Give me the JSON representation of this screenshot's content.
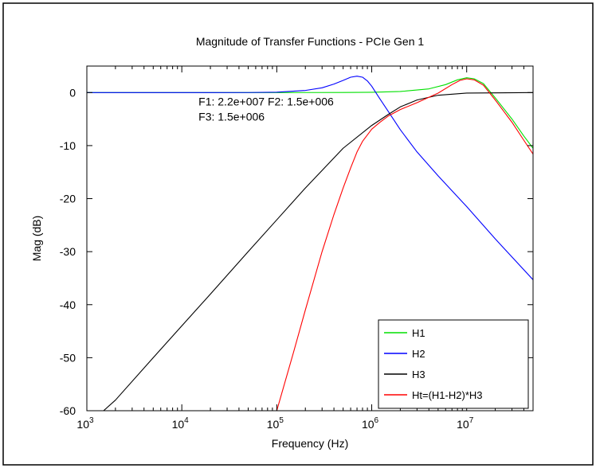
{
  "chart_data": {
    "type": "line",
    "title": "Magnitude of Transfer Functions - PCIe Gen 1",
    "xlabel": "Frequency (Hz)",
    "ylabel": "Mag (dB)",
    "xscale": "log",
    "xlim": [
      1000,
      50000000
    ],
    "ylim": [
      -60,
      5
    ],
    "grid": false,
    "legend_position": "bottom-right",
    "x_ticks": [
      {
        "value": 1000,
        "base": "10",
        "exp": "3"
      },
      {
        "value": 10000,
        "base": "10",
        "exp": "4"
      },
      {
        "value": 100000,
        "base": "10",
        "exp": "5"
      },
      {
        "value": 1000000,
        "base": "10",
        "exp": "6"
      },
      {
        "value": 10000000,
        "base": "10",
        "exp": "7"
      }
    ],
    "y_ticks": [
      {
        "value": 0,
        "label": "0"
      },
      {
        "value": -10,
        "label": "-10"
      },
      {
        "value": -20,
        "label": "-20"
      },
      {
        "value": -30,
        "label": "-30"
      },
      {
        "value": -40,
        "label": "-40"
      },
      {
        "value": -50,
        "label": "-50"
      },
      {
        "value": -60,
        "label": "-60"
      }
    ],
    "annotations": [
      {
        "text": "F1: 2.2e+007 F2: 1.5e+006",
        "x": 15000,
        "y": -2.4
      },
      {
        "text": "F3: 1.5e+006",
        "x": 15000,
        "y": -5.3
      }
    ],
    "series": [
      {
        "name": "H1",
        "color": "#00e000",
        "points": [
          [
            1000,
            0
          ],
          [
            100000,
            0
          ],
          [
            500000,
            0.02
          ],
          [
            1000000,
            0.05
          ],
          [
            2000000,
            0.2
          ],
          [
            4000000,
            0.7
          ],
          [
            6000000,
            1.5
          ],
          [
            8000000,
            2.4
          ],
          [
            10000000,
            2.8
          ],
          [
            12000000,
            2.6
          ],
          [
            15000000,
            1.7
          ],
          [
            20000000,
            -1.0
          ],
          [
            30000000,
            -5.0
          ],
          [
            40000000,
            -8.2
          ],
          [
            50000000,
            -10.5
          ]
        ]
      },
      {
        "name": "H2",
        "color": "#0000ff",
        "points": [
          [
            1000,
            0
          ],
          [
            20000,
            0
          ],
          [
            50000,
            0.01
          ],
          [
            100000,
            0.08
          ],
          [
            200000,
            0.4
          ],
          [
            300000,
            0.9
          ],
          [
            400000,
            1.6
          ],
          [
            500000,
            2.3
          ],
          [
            600000,
            2.9
          ],
          [
            700000,
            3.1
          ],
          [
            800000,
            2.9
          ],
          [
            900000,
            2.2
          ],
          [
            1000000,
            1.2
          ],
          [
            1200000,
            -1.0
          ],
          [
            1500000,
            -3.6
          ],
          [
            2000000,
            -7.0
          ],
          [
            3000000,
            -11.2
          ],
          [
            5000000,
            -15.7
          ],
          [
            10000000,
            -21.5
          ],
          [
            20000000,
            -27.6
          ],
          [
            50000000,
            -35.3
          ]
        ]
      },
      {
        "name": "H3",
        "color": "#000000",
        "points": [
          [
            1500,
            -60
          ],
          [
            2000,
            -58
          ],
          [
            5000,
            -50
          ],
          [
            10000,
            -44
          ],
          [
            20000,
            -38
          ],
          [
            50000,
            -30
          ],
          [
            100000,
            -24
          ],
          [
            200000,
            -18
          ],
          [
            500000,
            -10.5
          ],
          [
            1000000,
            -6.2
          ],
          [
            1500000,
            -4.1
          ],
          [
            2000000,
            -2.7
          ],
          [
            3000000,
            -1.4
          ],
          [
            5000000,
            -0.5
          ],
          [
            10000000,
            -0.1
          ],
          [
            50000000,
            0
          ]
        ]
      },
      {
        "name": "Ht=(H1-H2)*H3",
        "color": "#ff0000",
        "points": [
          [
            100000,
            -60
          ],
          [
            150000,
            -49
          ],
          [
            200000,
            -41
          ],
          [
            300000,
            -30
          ],
          [
            400000,
            -23
          ],
          [
            500000,
            -18
          ],
          [
            600000,
            -14.2
          ],
          [
            700000,
            -11.2
          ],
          [
            800000,
            -9.2
          ],
          [
            1000000,
            -6.9
          ],
          [
            1200000,
            -5.7
          ],
          [
            1500000,
            -4.4
          ],
          [
            2000000,
            -3.2
          ],
          [
            3000000,
            -1.9
          ],
          [
            5000000,
            -0.1
          ],
          [
            7000000,
            1.5
          ],
          [
            8500000,
            2.3
          ],
          [
            10000000,
            2.6
          ],
          [
            12000000,
            2.4
          ],
          [
            15000000,
            1.4
          ],
          [
            20000000,
            -1.4
          ],
          [
            30000000,
            -5.6
          ],
          [
            40000000,
            -9.0
          ],
          [
            50000000,
            -11.6
          ]
        ]
      }
    ]
  }
}
